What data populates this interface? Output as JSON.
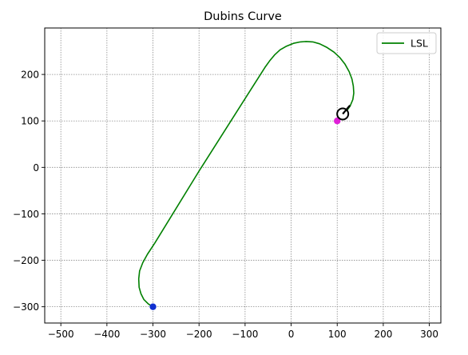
{
  "chart_data": {
    "type": "line",
    "title": "Dubins Curve",
    "xlabel": "",
    "ylabel": "",
    "xlim": [
      -535,
      325
    ],
    "ylim": [
      -335,
      300
    ],
    "xticks": [
      -500,
      -400,
      -300,
      -200,
      -100,
      0,
      100,
      200,
      300
    ],
    "yticks": [
      -300,
      -200,
      -100,
      0,
      100,
      200
    ],
    "xtick_labels": [
      "−500",
      "−400",
      "−300",
      "−200",
      "−100",
      "0",
      "100",
      "200",
      "300"
    ],
    "ytick_labels": [
      "−300",
      "−200",
      "−100",
      "0",
      "100",
      "200"
    ],
    "grid": true,
    "legend_position": "top-right",
    "series": [
      {
        "name": "LSL",
        "color": "#008000",
        "x": [
          -300,
          -310,
          -320,
          -326,
          -330,
          -331,
          -329,
          -322,
          -312,
          -296,
          -200,
          -100,
          -57,
          -47,
          -36,
          -24,
          -10,
          5,
          20,
          33,
          47,
          62,
          78,
          93,
          106,
          117,
          126,
          132,
          135,
          136,
          134,
          128,
          120
        ],
        "y": [
          -300,
          -294,
          -284,
          -272,
          -258,
          -240,
          -223,
          -205,
          -187,
          -163,
          -8,
          148,
          215,
          229,
          242,
          253,
          261,
          267,
          270,
          271,
          270,
          266,
          258,
          248,
          236,
          222,
          206,
          190,
          175,
          160,
          146,
          132,
          121
        ]
      }
    ],
    "markers": [
      {
        "name": "start-point",
        "x": -300,
        "y": -300,
        "color": "#1030d0"
      },
      {
        "name": "goal-point",
        "x": 100,
        "y": 100,
        "color": "#e020d8"
      }
    ],
    "vehicle": {
      "x": 112,
      "y": 115,
      "heading_deg": 50,
      "color": "#000000"
    }
  }
}
